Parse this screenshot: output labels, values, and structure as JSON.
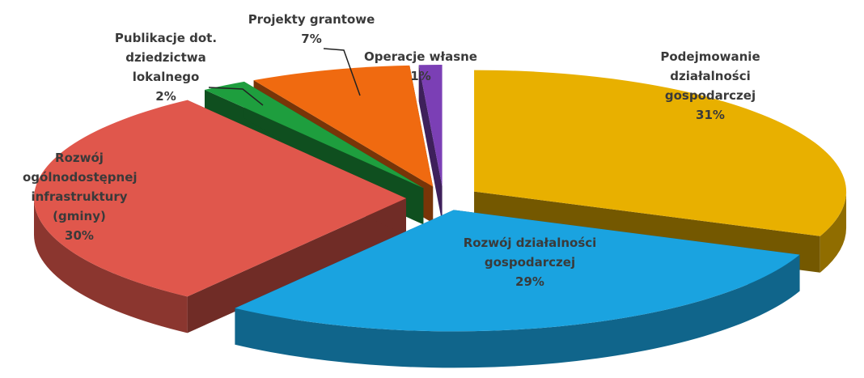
{
  "chart_data": {
    "type": "pie",
    "categories": [
      "Podejmowanie działalności gospodarczej",
      "Rozwój działalności gospodarczej",
      "Rozwój ogólnodostępnej infrastruktury (gminy)",
      "Publikacje dot. dziedzictwa lokalnego",
      "Projekty grantowe",
      "Operacje własne"
    ],
    "values": [
      31,
      29,
      30,
      2,
      7,
      1
    ],
    "value_labels": [
      "31%",
      "29%",
      "30%",
      "2%",
      "7%",
      "1%"
    ],
    "colors": [
      "#e8b000",
      "#1aa3e0",
      "#e0574c",
      "#1e9e3e",
      "#f06a10",
      "#7b3fb5"
    ]
  }
}
